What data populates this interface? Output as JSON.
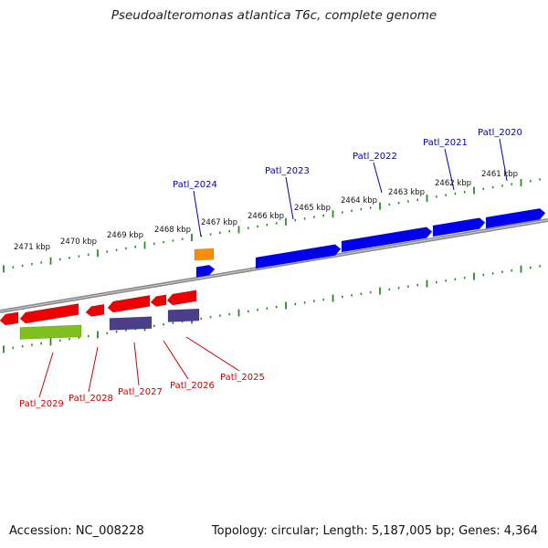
{
  "title": "Pseudoalteromonas atlantica T6c, complete genome",
  "footer": {
    "accession": "Accession: NC_008228",
    "stats": "Topology: circular; Length: 5,187,005 bp; Genes: 4,364"
  },
  "colors": {
    "forward_gene": "#0000ee",
    "reverse_gene": "#ee0000",
    "orange_feature": "#ff8c00",
    "purple_feature": "#4b3f8c",
    "green_feature": "#7fbf1f",
    "backbone": "#888888",
    "tick": "#2a8a2a",
    "forward_label": "#0000aa",
    "reverse_label": "#cc0000"
  },
  "scale_labels": [
    "2461 kbp",
    "2462 kbp",
    "2463 kbp",
    "2464 kbp",
    "2465 kbp",
    "2466 kbp",
    "2467 kbp",
    "2468 kbp",
    "2469 kbp",
    "2470 kbp",
    "2471 kbp"
  ],
  "forward_gene_labels": [
    "Patl_2020",
    "Patl_2021",
    "Patl_2022",
    "Patl_2023",
    "Patl_2024"
  ],
  "reverse_gene_labels": [
    "Patl_2025",
    "Patl_2026",
    "Patl_2027",
    "Patl_2028",
    "Patl_2029"
  ]
}
